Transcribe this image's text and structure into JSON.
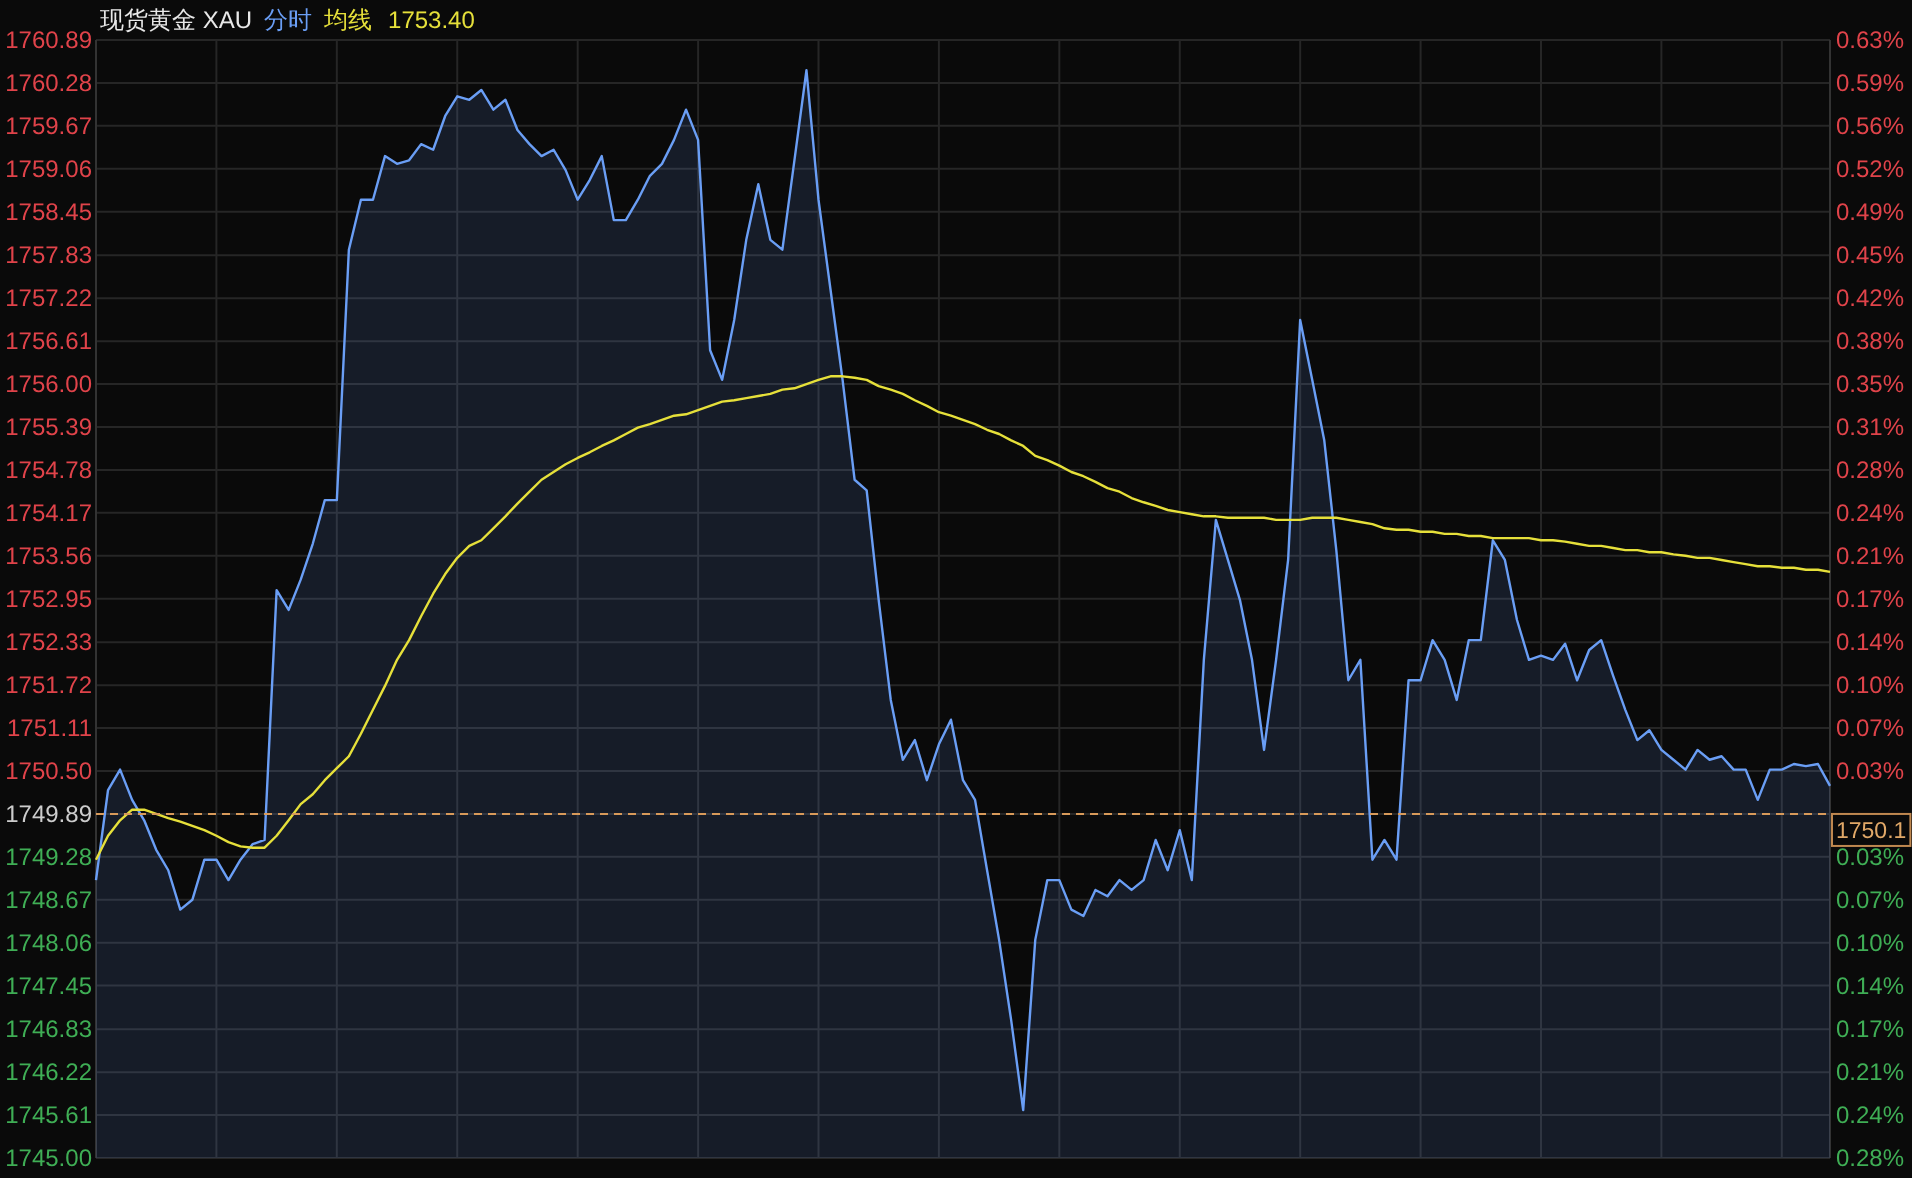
{
  "chart_data": {
    "type": "line",
    "title": "现货黄金 XAU",
    "legend": "top left",
    "grid": true,
    "annotations": [
      "1753.40",
      "1750.1"
    ],
    "categories": [
      null,
      null,
      null,
      null,
      null,
      null,
      null,
      null,
      null,
      null,
      null,
      null,
      null,
      null,
      null,
      null,
      null,
      null,
      null,
      null,
      null,
      null,
      null,
      null,
      null,
      null,
      null,
      null,
      null,
      null,
      null,
      null,
      null,
      null,
      null,
      null,
      null,
      null,
      null,
      null,
      null,
      null,
      null,
      null,
      null,
      null,
      null,
      null,
      null,
      null,
      null,
      null,
      null,
      null,
      null,
      null,
      null,
      null,
      null,
      null,
      null,
      null,
      null,
      null,
      null,
      null,
      null,
      null,
      null,
      null,
      null,
      null,
      null,
      null,
      null,
      null,
      null,
      null,
      null,
      null,
      null,
      null,
      null,
      null,
      null,
      null,
      null,
      null,
      null,
      null,
      null,
      null,
      null,
      null,
      null,
      null,
      null,
      null,
      null,
      null,
      null,
      null,
      null,
      null,
      null,
      null,
      null,
      null,
      null,
      null,
      null,
      null,
      null,
      null,
      null,
      null,
      null,
      null,
      null,
      null,
      null,
      null,
      null,
      null,
      null,
      null,
      null,
      null,
      null,
      null,
      null,
      null,
      null,
      null,
      null,
      null,
      null,
      null,
      null,
      null,
      null,
      null,
      null,
      null,
      null
    ],
    "series": [
      {
        "name": "分时",
        "type": "area",
        "color": "#6a9ef5",
        "values": [
          1748.95,
          1750.23,
          1750.52,
          1750.09,
          1749.8,
          1749.38,
          1749.09,
          1748.53,
          1748.67,
          1749.24,
          1749.24,
          1748.95,
          1749.24,
          1749.46,
          1749.52,
          1753.07,
          1752.79,
          1753.22,
          1753.73,
          1754.35,
          1754.35,
          1757.91,
          1758.62,
          1758.62,
          1759.24,
          1759.13,
          1759.18,
          1759.41,
          1759.33,
          1759.81,
          1760.09,
          1760.04,
          1760.18,
          1759.9,
          1760.04,
          1759.61,
          1759.41,
          1759.24,
          1759.33,
          1759.04,
          1758.62,
          1758.9,
          1759.24,
          1758.33,
          1758.33,
          1758.62,
          1758.96,
          1759.13,
          1759.47,
          1759.9,
          1759.47,
          1756.48,
          1756.06,
          1756.91,
          1758.05,
          1758.84,
          1758.05,
          1757.91,
          1759.18,
          1760.46,
          1758.62,
          1757.34,
          1756.06,
          1754.64,
          1754.49,
          1752.93,
          1751.51,
          1750.66,
          1750.94,
          1750.37,
          1750.88,
          1751.23,
          1750.37,
          1750.09,
          1749.09,
          1748.1,
          1746.96,
          1745.68,
          1748.1,
          1748.95,
          1748.95,
          1748.53,
          1748.44,
          1748.81,
          1748.72,
          1748.95,
          1748.81,
          1748.95,
          1749.52,
          1749.09,
          1749.66,
          1748.95,
          1752.08,
          1754.07,
          1753.5,
          1752.93,
          1752.08,
          1750.8,
          1752.08,
          1753.5,
          1756.91,
          1756.06,
          1755.2,
          1753.64,
          1751.79,
          1752.08,
          1749.24,
          1749.52,
          1749.24,
          1751.79,
          1751.79,
          1752.36,
          1752.08,
          1751.51,
          1752.36,
          1752.36,
          1753.78,
          1753.5,
          1752.65,
          1752.08,
          1752.14,
          1752.08,
          1752.31,
          1751.79,
          1752.22,
          1752.36,
          1751.85,
          1751.37,
          1750.94,
          1751.08,
          1750.8,
          1750.66,
          1750.52,
          1750.8,
          1750.66,
          1750.71,
          1750.52,
          1750.52,
          1750.09,
          1750.52,
          1750.52,
          1750.6,
          1750.57,
          1750.6,
          1750.29
        ]
      },
      {
        "name": "均线",
        "type": "line",
        "color": "#e6e03a",
        "values": [
          1749.24,
          1749.58,
          1749.8,
          1749.95,
          1749.95,
          1749.89,
          1749.83,
          1749.78,
          1749.72,
          1749.66,
          1749.58,
          1749.49,
          1749.43,
          1749.41,
          1749.41,
          1749.58,
          1749.8,
          1750.03,
          1750.17,
          1750.37,
          1750.54,
          1750.71,
          1751.03,
          1751.37,
          1751.71,
          1752.08,
          1752.36,
          1752.7,
          1753.02,
          1753.3,
          1753.53,
          1753.7,
          1753.78,
          1753.95,
          1754.12,
          1754.3,
          1754.47,
          1754.64,
          1754.75,
          1754.86,
          1754.95,
          1755.03,
          1755.12,
          1755.2,
          1755.29,
          1755.38,
          1755.43,
          1755.49,
          1755.55,
          1755.57,
          1755.63,
          1755.69,
          1755.75,
          1755.77,
          1755.8,
          1755.83,
          1755.86,
          1755.92,
          1755.94,
          1756.0,
          1756.06,
          1756.11,
          1756.11,
          1756.09,
          1756.06,
          1755.97,
          1755.92,
          1755.86,
          1755.77,
          1755.69,
          1755.6,
          1755.55,
          1755.49,
          1755.43,
          1755.35,
          1755.29,
          1755.2,
          1755.12,
          1754.98,
          1754.92,
          1754.84,
          1754.75,
          1754.69,
          1754.61,
          1754.52,
          1754.47,
          1754.38,
          1754.32,
          1754.27,
          1754.21,
          1754.18,
          1754.15,
          1754.12,
          1754.12,
          1754.1,
          1754.1,
          1754.1,
          1754.1,
          1754.07,
          1754.07,
          1754.07,
          1754.1,
          1754.1,
          1754.1,
          1754.07,
          1754.04,
          1754.01,
          1753.95,
          1753.93,
          1753.93,
          1753.9,
          1753.9,
          1753.87,
          1753.87,
          1753.84,
          1753.84,
          1753.81,
          1753.81,
          1753.81,
          1753.81,
          1753.78,
          1753.78,
          1753.76,
          1753.73,
          1753.7,
          1753.7,
          1753.67,
          1753.64,
          1753.64,
          1753.61,
          1753.61,
          1753.58,
          1753.56,
          1753.53,
          1753.53,
          1753.5,
          1753.47,
          1753.44,
          1753.41,
          1753.41,
          1753.39,
          1753.39,
          1753.36,
          1753.36,
          1753.33
        ]
      }
    ],
    "ylim": [
      1745.0,
      1760.89
    ],
    "yticks": [
      {
        "value": 1745,
        "label": "1745.00"
      },
      1745.61,
      1746.22,
      1746.83,
      1747.45,
      1748.06,
      1748.67,
      1749.28,
      1749.89,
      {
        "value": 1750.5,
        "label": "1750.50"
      },
      1751.11,
      1751.72,
      1752.33,
      1752.95,
      1753.56,
      1754.17,
      1754.78,
      1755.39,
      {
        "value": 1756,
        "label": "1756.00"
      },
      1756.61,
      1757.22,
      1757.83,
      1758.45,
      1759.06,
      1759.67,
      1760.28,
      1760.89
    ],
    "y2lim": [
      -0.2794,
      0.6286
    ],
    "y2ticks": [
      {
        "value": -0.2794,
        "label": "0.28%"
      },
      {
        "value": -0.2445,
        "label": "0.24%"
      },
      {
        "value": -0.2096,
        "label": "0.21%"
      },
      {
        "value": -0.1746,
        "label": "0.17%"
      },
      {
        "value": -0.1397,
        "label": "0.14%"
      },
      {
        "value": -0.1048,
        "label": "0.10%"
      },
      {
        "value": -0.0698,
        "label": "0.07%"
      },
      {
        "value": -0.0349,
        "label": "0.03%"
      },
      {
        "value": 0.0349,
        "label": "0.03%"
      },
      {
        "value": 0.0698,
        "label": "0.07%"
      },
      {
        "value": 0.1048,
        "label": "0.10%"
      },
      {
        "value": 0.1397,
        "label": "0.14%"
      },
      {
        "value": 0.1746,
        "label": "0.17%"
      },
      {
        "value": 0.2096,
        "label": "0.21%"
      },
      {
        "value": 0.2445,
        "label": "0.24%"
      },
      {
        "value": 0.2794,
        "label": "0.28%"
      },
      {
        "value": 0.3143,
        "label": "0.31%"
      },
      {
        "value": 0.3492,
        "label": "0.35%"
      },
      {
        "value": 0.3842,
        "label": "0.38%"
      },
      {
        "value": 0.4191,
        "label": "0.42%"
      },
      {
        "value": 0.454,
        "label": "0.45%"
      },
      {
        "value": 0.489,
        "label": "0.49%"
      },
      {
        "value": 0.5239,
        "label": "0.52%"
      },
      {
        "value": 0.5588,
        "label": "0.56%"
      },
      {
        "value": 0.5937,
        "label": "0.59%"
      },
      {
        "value": 0.6286,
        "label": "0.63%"
      }
    ],
    "ref_lines": [
      {
        "axis": "y",
        "value": 1749.89,
        "color": "#d89a5a",
        "line_style": "dashed"
      }
    ]
  }
}
